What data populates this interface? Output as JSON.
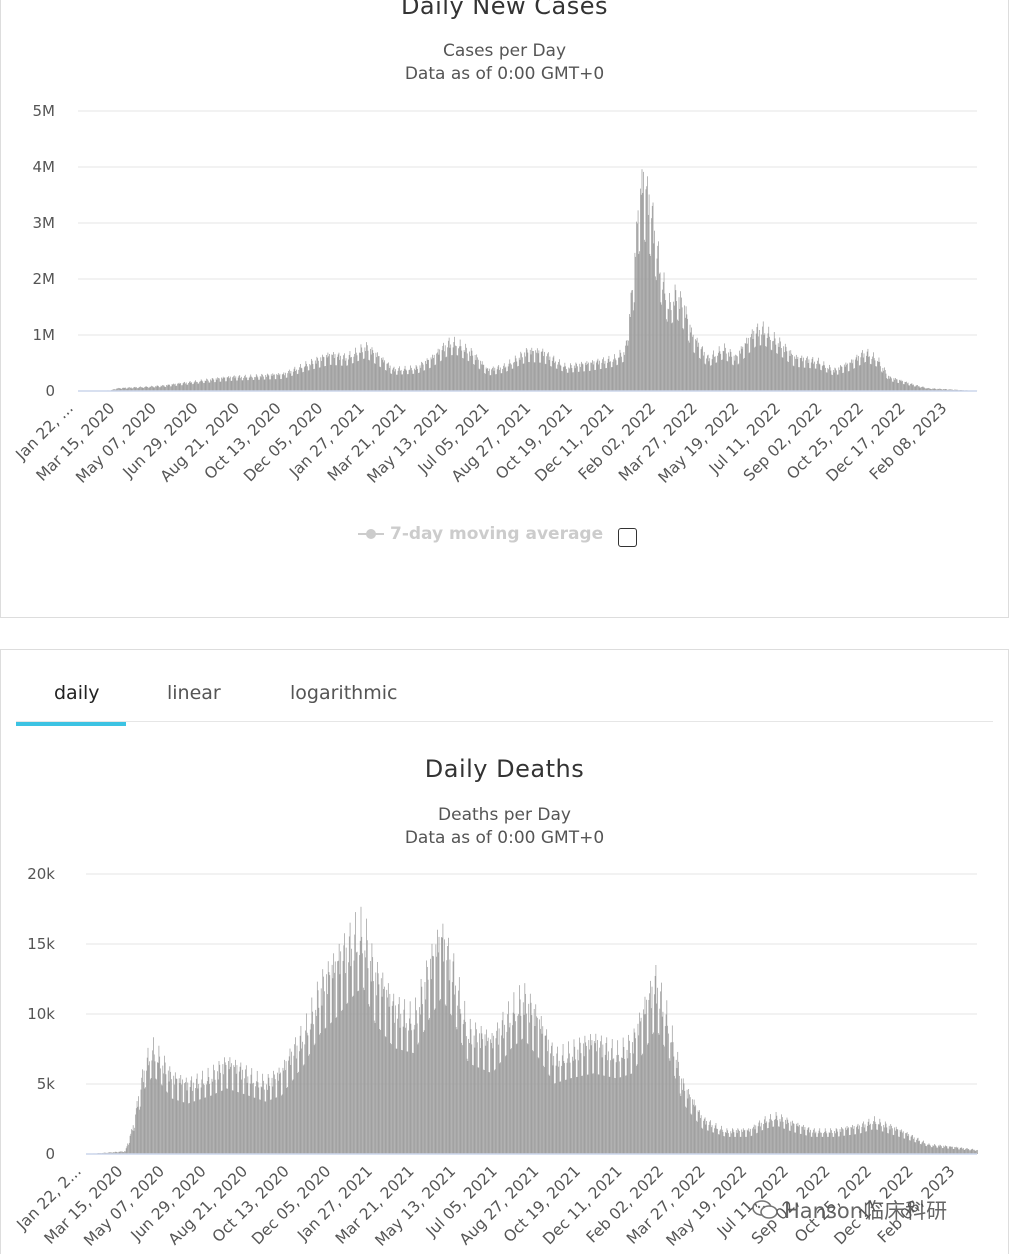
{
  "charts": {
    "cases": {
      "title": "Daily New Cases",
      "subtitle_line1": "Cases per Day",
      "subtitle_line2": "Data as of 0:00 GMT+0",
      "legend_label": "7-day moving average",
      "chart_data": {
        "type": "bar",
        "title": "Daily New Cases",
        "subtitle": "Cases per Day / Data as of 0:00 GMT+0",
        "ylabel": "Cases per Day",
        "ylim": [
          0,
          5000000
        ],
        "y_ticks": [
          "0",
          "1M",
          "2M",
          "3M",
          "4M",
          "5M"
        ],
        "x_ticks": [
          "Jan 22, ...",
          "Mar 15, 2020",
          "May 07, 2020",
          "Jun 29, 2020",
          "Aug 21, 2020",
          "Oct 13, 2020",
          "Dec 05, 2020",
          "Jan 27, 2021",
          "Mar 21, 2021",
          "May 13, 2021",
          "Jul 05, 2021",
          "Aug 27, 2021",
          "Oct 19, 2021",
          "Dec 11, 2021",
          "Feb 02, 2022",
          "Mar 27, 2022",
          "May 19, 2022",
          "Jul 11, 2022",
          "Sep 02, 2022",
          "Oct 25, 2022",
          "Dec 17, 2022",
          "Feb 08, 2023"
        ],
        "x_start_date": "2020-01-22",
        "x_end_date": "2023-03-09",
        "trend_points": [
          [
            0,
            0
          ],
          [
            40,
            10000
          ],
          [
            50,
            50000
          ],
          [
            110,
            100000
          ],
          [
            160,
            200000
          ],
          [
            200,
            260000
          ],
          [
            260,
            300000
          ],
          [
            290,
            500000
          ],
          [
            320,
            650000
          ],
          [
            340,
            620000
          ],
          [
            365,
            820000
          ],
          [
            400,
            400000
          ],
          [
            430,
            430000
          ],
          [
            450,
            600000
          ],
          [
            470,
            880000
          ],
          [
            480,
            900000
          ],
          [
            500,
            700000
          ],
          [
            520,
            380000
          ],
          [
            540,
            450000
          ],
          [
            570,
            720000
          ],
          [
            590,
            700000
          ],
          [
            620,
            450000
          ],
          [
            650,
            500000
          ],
          [
            680,
            600000
          ],
          [
            695,
            750000
          ],
          [
            705,
            2000000
          ],
          [
            712,
            3400000
          ],
          [
            718,
            3800000
          ],
          [
            728,
            3300000
          ],
          [
            740,
            2200000
          ],
          [
            750,
            1600000
          ],
          [
            760,
            1800000
          ],
          [
            770,
            1500000
          ],
          [
            780,
            1000000
          ],
          [
            800,
            600000
          ],
          [
            820,
            800000
          ],
          [
            835,
            600000
          ],
          [
            860,
            1100000
          ],
          [
            870,
            1150000
          ],
          [
            890,
            900000
          ],
          [
            910,
            600000
          ],
          [
            940,
            550000
          ],
          [
            960,
            380000
          ],
          [
            980,
            500000
          ],
          [
            1000,
            720000
          ],
          [
            1015,
            600000
          ],
          [
            1030,
            250000
          ],
          [
            1060,
            120000
          ],
          [
            1080,
            50000
          ],
          [
            1143,
            0
          ]
        ]
      }
    },
    "deaths": {
      "title": "Daily Deaths",
      "subtitle_line1": "Deaths per Day",
      "subtitle_line2": "Data as of 0:00 GMT+0",
      "chart_data": {
        "type": "bar",
        "title": "Daily Deaths",
        "subtitle": "Deaths per Day / Data as of 0:00 GMT+0",
        "ylabel": "Deaths per Day",
        "ylim": [
          0,
          20000
        ],
        "y_ticks": [
          "0",
          "5k",
          "10k",
          "15k",
          "20k"
        ],
        "x_ticks": [
          "Jan 22, 2...",
          "Mar 15, 2020",
          "May 07, 2020",
          "Jun 29, 2020",
          "Aug 21, 2020",
          "Oct 13, 2020",
          "Dec 05, 2020",
          "Jan 27, 2021",
          "Mar 21, 2021",
          "May 13, 2021",
          "Jul 05, 2021",
          "Aug 27, 2021",
          "Oct 19, 2021",
          "Dec 11, 2021",
          "Feb 02, 2022",
          "Mar 27, 2022",
          "May 19, 2022",
          "Jul 11, 2022",
          "Sep 02, 2022",
          "Oct 25, 2022",
          "Dec 17, 2022",
          "Feb 08, 2023"
        ],
        "x_start_date": "2020-01-22",
        "x_end_date": "2023-03-09",
        "trend_points": [
          [
            0,
            0
          ],
          [
            50,
            200
          ],
          [
            60,
            2000
          ],
          [
            75,
            6500
          ],
          [
            85,
            7800
          ],
          [
            95,
            7000
          ],
          [
            110,
            5500
          ],
          [
            130,
            5000
          ],
          [
            160,
            5800
          ],
          [
            180,
            6500
          ],
          [
            200,
            6000
          ],
          [
            230,
            5200
          ],
          [
            250,
            5800
          ],
          [
            280,
            9000
          ],
          [
            300,
            12000
          ],
          [
            320,
            13500
          ],
          [
            345,
            16000
          ],
          [
            355,
            16500
          ],
          [
            370,
            13000
          ],
          [
            395,
            10500
          ],
          [
            420,
            10000
          ],
          [
            440,
            13500
          ],
          [
            455,
            15500
          ],
          [
            470,
            13500
          ],
          [
            490,
            9000
          ],
          [
            520,
            8000
          ],
          [
            545,
            10500
          ],
          [
            560,
            11500
          ],
          [
            580,
            9500
          ],
          [
            600,
            7000
          ],
          [
            620,
            7500
          ],
          [
            650,
            8000
          ],
          [
            680,
            7500
          ],
          [
            700,
            8000
          ],
          [
            730,
            12500
          ],
          [
            745,
            10000
          ],
          [
            765,
            5000
          ],
          [
            790,
            2500
          ],
          [
            820,
            1700
          ],
          [
            850,
            1700
          ],
          [
            870,
            2500
          ],
          [
            885,
            2800
          ],
          [
            905,
            2200
          ],
          [
            930,
            1700
          ],
          [
            960,
            1700
          ],
          [
            990,
            2000
          ],
          [
            1010,
            2500
          ],
          [
            1030,
            2000
          ],
          [
            1050,
            1500
          ],
          [
            1080,
            700
          ],
          [
            1143,
            300
          ]
        ]
      }
    }
  },
  "tabs": [
    {
      "label": "daily"
    },
    {
      "label": "linear"
    },
    {
      "label": "logarithmic"
    }
  ],
  "watermark": {
    "text": "Hanson临床科研"
  },
  "colors": {
    "bar": "#999999",
    "grid": "#e6e6e6",
    "baseline": "#ccd6eb",
    "tab_active": "#3cc3e3",
    "legend_inactive": "#cccccc"
  }
}
